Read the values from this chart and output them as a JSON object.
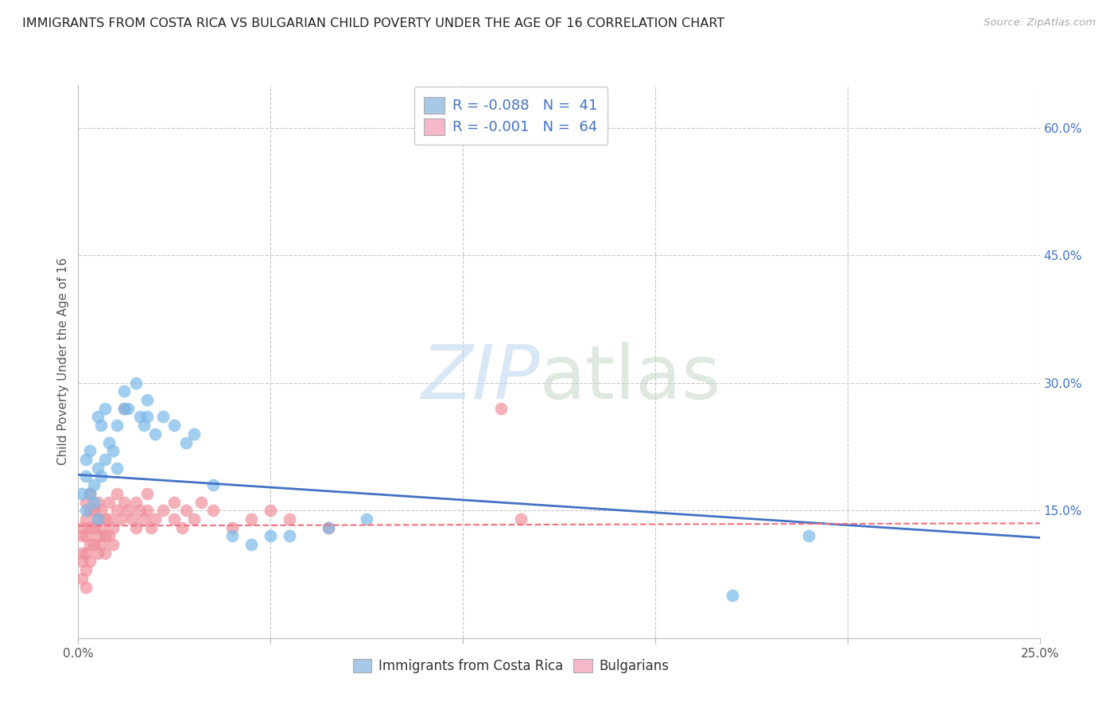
{
  "title": "IMMIGRANTS FROM COSTA RICA VS BULGARIAN CHILD POVERTY UNDER THE AGE OF 16 CORRELATION CHART",
  "source": "Source: ZipAtlas.com",
  "ylabel": "Child Poverty Under the Age of 16",
  "xlim": [
    0.0,
    0.25
  ],
  "ylim": [
    0.0,
    0.65
  ],
  "yticks_right": [
    0.15,
    0.3,
    0.45,
    0.6
  ],
  "ytick_right_labels": [
    "15.0%",
    "30.0%",
    "45.0%",
    "60.0%"
  ],
  "legend_entries": [
    {
      "label": "R = -0.088   N =  41",
      "color": "#a8c8e8"
    },
    {
      "label": "R = -0.001   N =  64",
      "color": "#f4b8c8"
    }
  ],
  "legend_series": [
    "Immigrants from Costa Rica",
    "Bulgarians"
  ],
  "series1_color": "#7ab8e8",
  "series2_color": "#f0909c",
  "trendline1_color": "#4472c4",
  "trendline2_color": "#f07080",
  "background_color": "#ffffff",
  "grid_color": "#c8c8c8",
  "costa_rica_x": [
    0.001,
    0.002,
    0.002,
    0.002,
    0.003,
    0.003,
    0.004,
    0.004,
    0.005,
    0.005,
    0.005,
    0.006,
    0.006,
    0.007,
    0.007,
    0.008,
    0.009,
    0.01,
    0.01,
    0.012,
    0.012,
    0.013,
    0.015,
    0.016,
    0.017,
    0.018,
    0.018,
    0.02,
    0.022,
    0.025,
    0.028,
    0.03,
    0.035,
    0.04,
    0.045,
    0.05,
    0.055,
    0.065,
    0.075,
    0.19,
    0.17
  ],
  "costa_rica_y": [
    0.17,
    0.19,
    0.15,
    0.21,
    0.17,
    0.22,
    0.16,
    0.18,
    0.26,
    0.2,
    0.14,
    0.25,
    0.19,
    0.27,
    0.21,
    0.23,
    0.22,
    0.2,
    0.25,
    0.27,
    0.29,
    0.27,
    0.3,
    0.26,
    0.25,
    0.26,
    0.28,
    0.24,
    0.26,
    0.25,
    0.23,
    0.24,
    0.18,
    0.12,
    0.11,
    0.12,
    0.12,
    0.13,
    0.14,
    0.12,
    0.05
  ],
  "bulgarian_x": [
    0.001,
    0.001,
    0.001,
    0.001,
    0.001,
    0.002,
    0.002,
    0.002,
    0.002,
    0.002,
    0.002,
    0.003,
    0.003,
    0.003,
    0.003,
    0.003,
    0.004,
    0.004,
    0.004,
    0.005,
    0.005,
    0.005,
    0.005,
    0.006,
    0.006,
    0.006,
    0.007,
    0.007,
    0.007,
    0.008,
    0.008,
    0.008,
    0.009,
    0.009,
    0.01,
    0.01,
    0.011,
    0.012,
    0.012,
    0.013,
    0.014,
    0.015,
    0.015,
    0.016,
    0.017,
    0.018,
    0.018,
    0.019,
    0.02,
    0.022,
    0.025,
    0.025,
    0.027,
    0.028,
    0.03,
    0.032,
    0.035,
    0.04,
    0.045,
    0.05,
    0.055,
    0.065,
    0.115,
    0.11
  ],
  "bulgarian_y": [
    0.13,
    0.12,
    0.1,
    0.09,
    0.07,
    0.16,
    0.14,
    0.12,
    0.1,
    0.08,
    0.06,
    0.17,
    0.15,
    0.13,
    0.11,
    0.09,
    0.15,
    0.13,
    0.11,
    0.16,
    0.14,
    0.12,
    0.1,
    0.15,
    0.13,
    0.11,
    0.14,
    0.12,
    0.1,
    0.16,
    0.14,
    0.12,
    0.13,
    0.11,
    0.17,
    0.15,
    0.14,
    0.16,
    0.27,
    0.15,
    0.14,
    0.16,
    0.13,
    0.15,
    0.14,
    0.17,
    0.15,
    0.13,
    0.14,
    0.15,
    0.14,
    0.16,
    0.13,
    0.15,
    0.14,
    0.16,
    0.15,
    0.13,
    0.14,
    0.15,
    0.14,
    0.13,
    0.14,
    0.27
  ],
  "trendline1_x": [
    0.0,
    0.25
  ],
  "trendline1_y": [
    0.192,
    0.118
  ],
  "trendline2_x": [
    0.0,
    0.25
  ],
  "trendline2_y": [
    0.132,
    0.135
  ]
}
